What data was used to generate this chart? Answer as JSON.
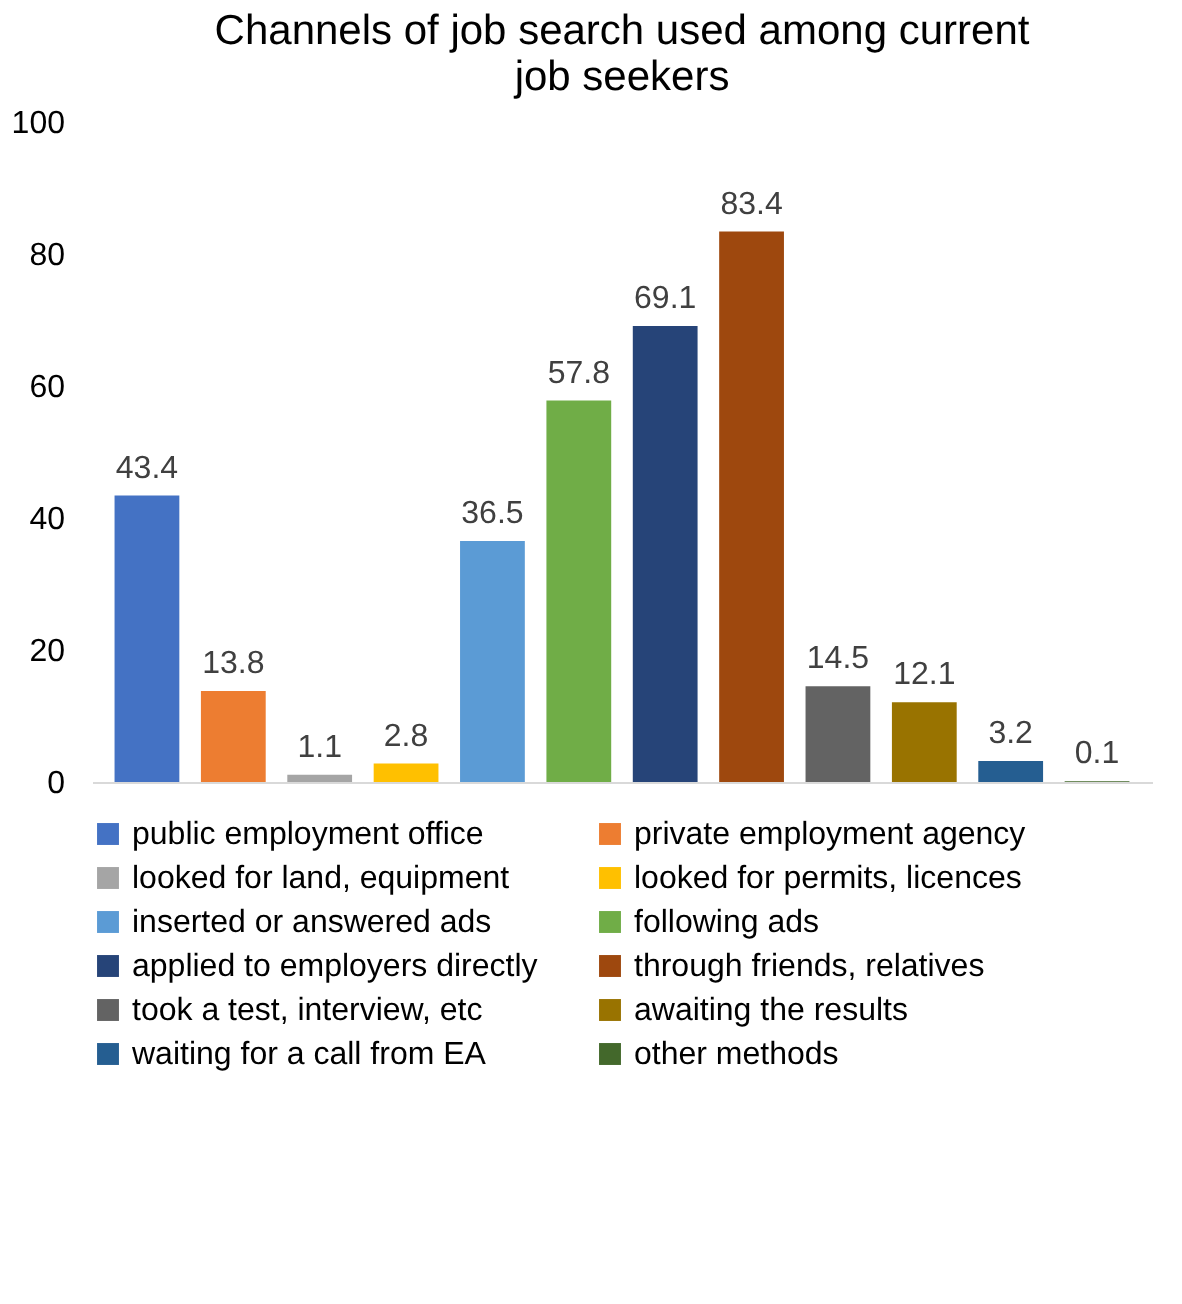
{
  "chart_data": {
    "type": "bar",
    "title": "Channels of job search used among current job seekers",
    "categories": [
      null
    ],
    "series": [
      {
        "name": "public employment office",
        "color": "#4472c4",
        "values": [
          43.4
        ]
      },
      {
        "name": "private employment agency",
        "color": "#ed7d31",
        "values": [
          13.8
        ]
      },
      {
        "name": "looked for land, equipment",
        "color": "#a5a5a5",
        "values": [
          1.1
        ]
      },
      {
        "name": "looked for permits, licences",
        "color": "#ffc000",
        "values": [
          2.8
        ]
      },
      {
        "name": "inserted or answered ads",
        "color": "#5b9bd5",
        "values": [
          36.5
        ]
      },
      {
        "name": "following ads",
        "color": "#70ad47",
        "values": [
          57.8
        ]
      },
      {
        "name": "applied to employers directly",
        "color": "#264478",
        "values": [
          69.1
        ]
      },
      {
        "name": "through friends, relatives",
        "color": "#9e480e",
        "values": [
          83.4
        ]
      },
      {
        "name": "took a test, interview, etc",
        "color": "#636363",
        "values": [
          14.5
        ]
      },
      {
        "name": "awaiting the results",
        "color": "#997300",
        "values": [
          12.1
        ]
      },
      {
        "name": "waiting for a call from EA",
        "color": "#255e91",
        "values": [
          3.2
        ]
      },
      {
        "name": "other methods",
        "color": "#43682b",
        "values": [
          0.1
        ]
      }
    ],
    "ylim": [
      0,
      100
    ],
    "yticks": [
      0,
      20,
      40,
      60,
      80,
      100
    ],
    "grid": false,
    "legend": "bottom",
    "data_labels": true
  }
}
